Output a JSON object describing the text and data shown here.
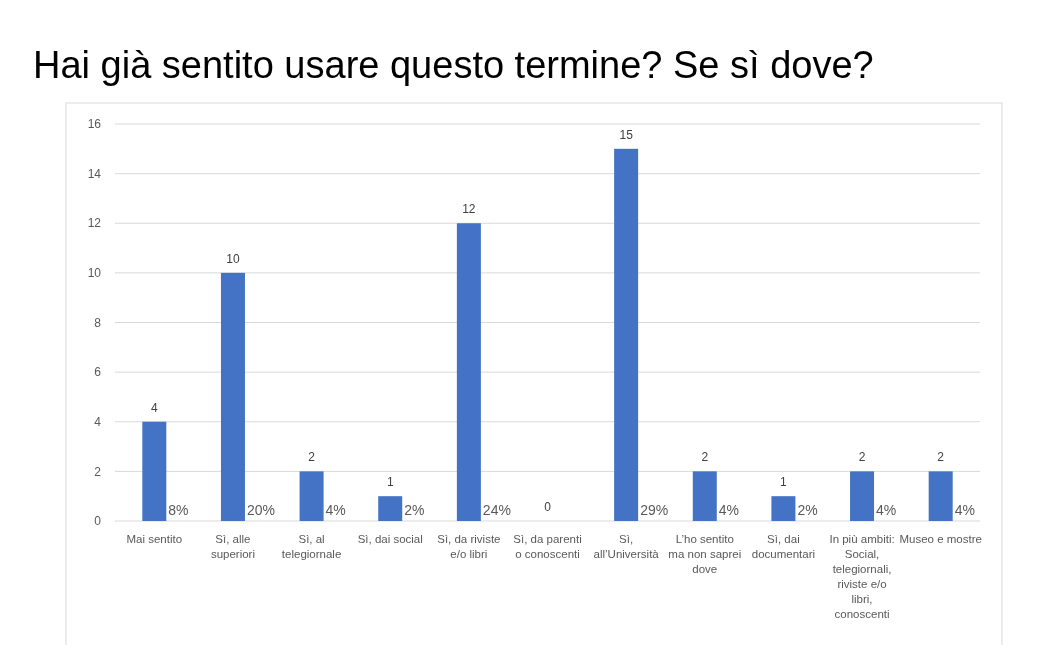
{
  "chart_data": {
    "type": "bar",
    "title": "Hai già sentito usare questo termine? Se sì dove?",
    "categories": [
      "Mai sentito",
      "Sì, alle superiori",
      "Sì, al telegiornale",
      "Sì, dai social",
      "Sì, da riviste e/o libri",
      "Sì, da parenti o conoscenti",
      "Sì, all’Università",
      "L’ho sentito ma non saprei dove",
      "Sì, dai documentari",
      "In più ambiti: Social, telegiornali, riviste e/o libri, conoscenti",
      "Museo e mostre"
    ],
    "values": [
      4,
      10,
      2,
      1,
      12,
      0,
      15,
      2,
      1,
      2,
      2
    ],
    "color": "#4472c4",
    "ylim": [
      0,
      16
    ],
    "yticks": [
      0,
      2,
      4,
      6,
      8,
      10,
      12,
      14,
      16
    ],
    "grid": "y",
    "data_labels": true,
    "annotations": [
      {
        "text": "8%",
        "x": "Mai sentito",
        "y": 0
      },
      {
        "text": "20%",
        "x": "Sì, alle superiori",
        "y": 0
      },
      {
        "text": "4%",
        "x": "Sì, al telegiornale",
        "y": 0
      },
      {
        "text": "2%",
        "x": "Sì, dai social",
        "y": 0
      },
      {
        "text": "24%",
        "x": "Sì, da riviste e/o libri",
        "y": 0
      },
      {
        "text": "29%",
        "x": "Sì, all’Università",
        "y": 0
      },
      {
        "text": "4%",
        "x": "L’ho sentito ma non saprei dove",
        "y": 0
      },
      {
        "text": "2%",
        "x": "Sì, dai documentari",
        "y": 0
      },
      {
        "text": "4%",
        "x": "In più ambiti: Social, telegiornali, riviste e/o libri, conoscenti",
        "y": 0
      },
      {
        "text": "4%",
        "x": "Museo e mostre",
        "y": 0
      }
    ]
  }
}
